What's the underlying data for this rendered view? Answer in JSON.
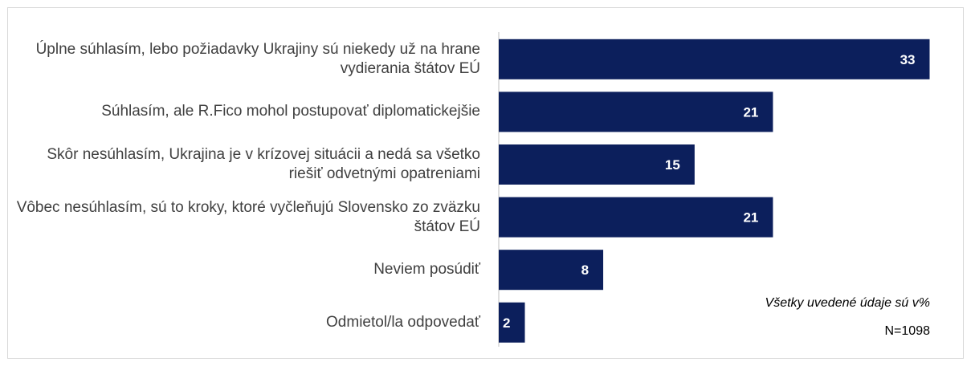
{
  "chart_data": {
    "type": "barh",
    "categories": [
      "Úplne súhlasím, lebo požiadavky Ukrajiny sú niekedy už na hrane vydierania štátov EÚ",
      "Súhlasím, ale R.Fico mohol postupovať diplomatickejšie",
      "Skôr nesúhlasím, Ukrajina je v krízovej situácii a nedá sa všetko riešiť odvetnými opatreniami",
      "Vôbec nesúhlasím, sú to kroky, ktoré vyčleňujú Slovensko zo zväzku štátov EÚ",
      "Neviem posúdiť",
      "Odmietol/la odpovedať"
    ],
    "values": [
      33,
      21,
      15,
      21,
      8,
      2
    ],
    "color": "#0c1f5c",
    "xlim": [
      0,
      35
    ],
    "annotations": [
      "Všetky uvedené údaje sú v%",
      "N=1098"
    ]
  }
}
